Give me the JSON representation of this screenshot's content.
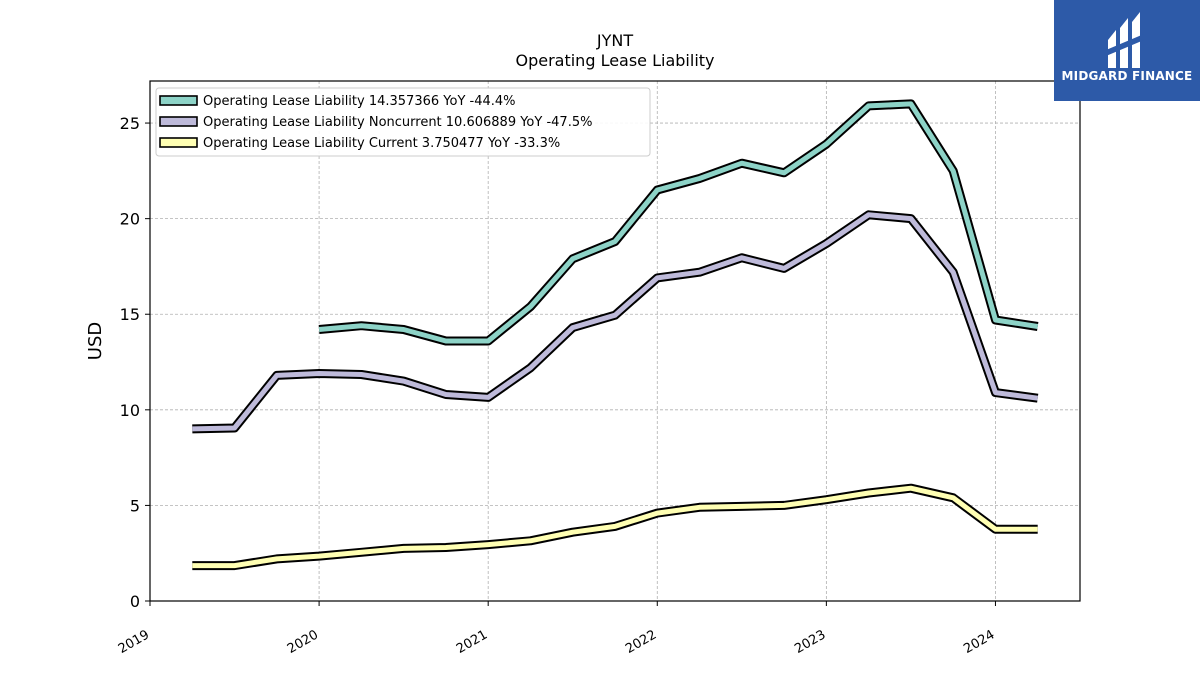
{
  "chart_data": {
    "type": "line",
    "title": "JYNT",
    "subtitle": "Operating Lease Liability",
    "ylabel": "USD",
    "xlabel": "",
    "ylim": [
      0,
      27.2
    ],
    "xlim": [
      2019.0,
      2024.5
    ],
    "yticks": [
      0,
      5,
      10,
      15,
      20,
      25
    ],
    "xticks": [
      "2019",
      "2020",
      "2021",
      "2022",
      "2023",
      "2024"
    ],
    "grid": true,
    "legend_position": "top-left",
    "series": [
      {
        "name": "Operating Lease Liability  14.357366 YoY -44.4%",
        "color": "#8dd3c7",
        "x": [
          2020.0,
          2020.25,
          2020.5,
          2020.75,
          2021.0,
          2021.25,
          2021.5,
          2021.75,
          2022.0,
          2022.25,
          2022.5,
          2022.75,
          2023.0,
          2023.25,
          2023.5,
          2023.75,
          2024.0,
          2024.25
        ],
        "y": [
          14.2,
          14.4,
          14.2,
          13.6,
          13.6,
          15.4,
          17.9,
          18.8,
          21.5,
          22.1,
          22.9,
          22.4,
          23.9,
          25.9,
          26.0,
          22.5,
          14.7,
          14.36
        ]
      },
      {
        "name": "Operating Lease Liability Noncurrent  10.606889 YoY -47.5%",
        "color": "#bebada",
        "x": [
          2019.25,
          2019.5,
          2019.75,
          2020.0,
          2020.25,
          2020.5,
          2020.75,
          2021.0,
          2021.25,
          2021.5,
          2021.75,
          2022.0,
          2022.25,
          2022.5,
          2022.75,
          2023.0,
          2023.25,
          2023.5,
          2023.75,
          2024.0,
          2024.25
        ],
        "y": [
          9.0,
          9.05,
          11.8,
          11.9,
          11.85,
          11.5,
          10.8,
          10.65,
          12.2,
          14.3,
          14.95,
          16.9,
          17.2,
          17.95,
          17.4,
          18.7,
          20.2,
          20.0,
          17.2,
          10.9,
          10.61
        ]
      },
      {
        "name": "Operating Lease Liability Current  3.750477 YoY -33.3%",
        "color": "#ffffb3",
        "x": [
          2019.25,
          2019.5,
          2019.75,
          2020.0,
          2020.25,
          2020.5,
          2020.75,
          2021.0,
          2021.25,
          2021.5,
          2021.75,
          2022.0,
          2022.25,
          2022.5,
          2022.75,
          2023.0,
          2023.25,
          2023.5,
          2023.75,
          2024.0,
          2024.25
        ],
        "y": [
          1.85,
          1.85,
          2.2,
          2.35,
          2.55,
          2.75,
          2.8,
          2.95,
          3.15,
          3.6,
          3.9,
          4.6,
          4.9,
          4.95,
          5.0,
          5.3,
          5.65,
          5.9,
          5.4,
          3.75,
          3.75
        ]
      }
    ]
  },
  "logo": {
    "text": "MIDGARD FINANCE",
    "background": "#2d5aa8",
    "icon": "midgard-logo-icon"
  }
}
